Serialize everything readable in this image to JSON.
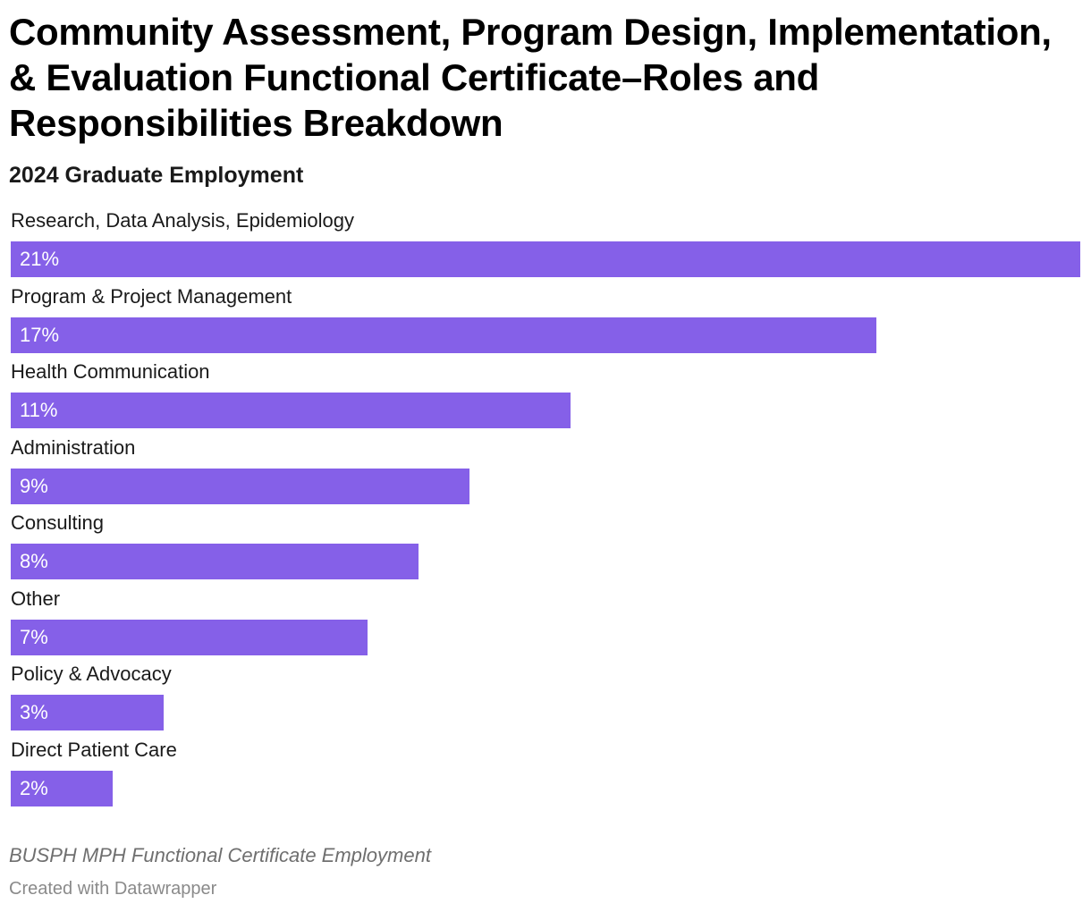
{
  "header": {
    "title": "Community Assessment, Program Design, Implementation, & Evaluation Functional Certificate–Roles and Responsibilities Breakdown",
    "subtitle": "2024 Graduate Employment"
  },
  "chart_data": {
    "type": "bar",
    "orientation": "horizontal",
    "categories": [
      "Research, Data Analysis, Epidemiology",
      "Program & Project Management",
      "Health Communication",
      "Administration",
      "Consulting",
      "Other",
      "Policy & Advocacy",
      "Direct Patient Care"
    ],
    "values": [
      21,
      17,
      11,
      9,
      8,
      7,
      3,
      2
    ],
    "value_labels": [
      "21%",
      "17%",
      "11%",
      "9%",
      "8%",
      "7%",
      "3%",
      "2%"
    ],
    "unit": "%",
    "title": "Community Assessment, Program Design, Implementation, & Evaluation Functional Certificate–Roles and Responsibilities Breakdown",
    "subtitle": "2024 Graduate Employment",
    "xlim": [
      0,
      21
    ],
    "grid": false,
    "bar_color": "#8560e8",
    "value_label_color": "#ffffff"
  },
  "footer": {
    "notes": "BUSPH MPH Functional Certificate Employment",
    "credit": "Created with Datawrapper"
  }
}
